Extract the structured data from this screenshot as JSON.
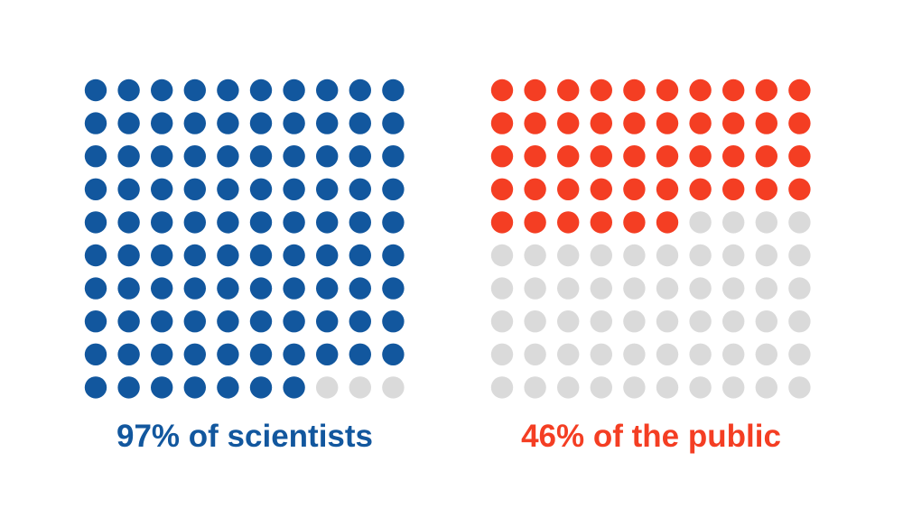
{
  "chart_data": [
    {
      "type": "waffle",
      "label": "97% of scientists",
      "value": 97,
      "total": 100,
      "colors": {
        "filled": "#12579e",
        "empty": "#dadada"
      }
    },
    {
      "type": "waffle",
      "label": "46% of the public",
      "value": 46,
      "total": 100,
      "colors": {
        "filled": "#f43e23",
        "empty": "#dadada"
      }
    }
  ]
}
